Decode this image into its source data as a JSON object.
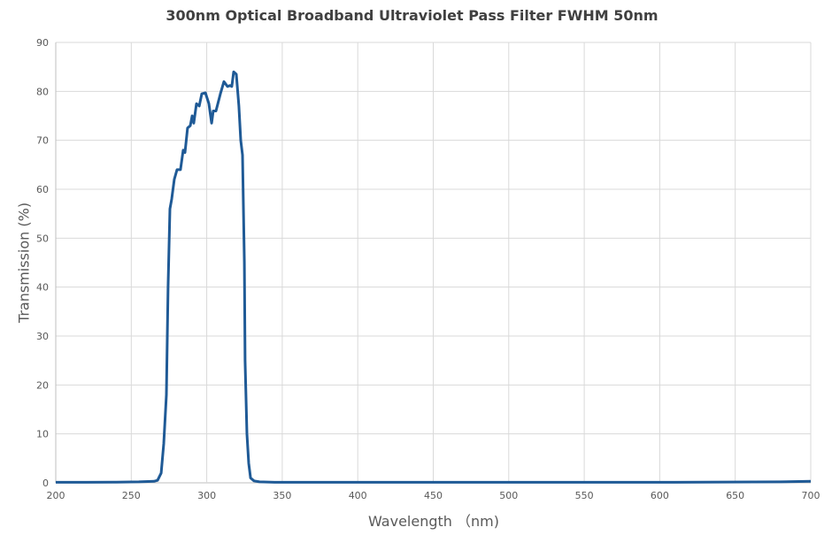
{
  "chart_data": {
    "type": "line",
    "title": "300nm Optical Broadband Ultraviolet Pass Filter FWHM 50nm",
    "xlabel": "Wavelength （nm)",
    "ylabel": "Transmission (%)",
    "xlim": [
      200,
      700
    ],
    "ylim": [
      0,
      90
    ],
    "xticks": [
      200,
      250,
      300,
      350,
      400,
      450,
      500,
      550,
      600,
      650,
      700
    ],
    "yticks": [
      0,
      10,
      20,
      30,
      40,
      50,
      60,
      70,
      80,
      90
    ],
    "grid": true,
    "line_color": "#1f5a96",
    "series": [
      {
        "x": [
          200,
          220,
          240,
          255,
          265,
          267.4,
          269.8,
          271.5,
          273.3,
          274.4,
          275.6,
          276.8,
          278.5,
          280.3,
          282.6,
          284.4,
          285.6,
          287.3,
          289.1,
          290.3,
          291.4,
          293.2,
          295,
          296.7,
          299.1,
          301.4,
          303.2,
          304.3,
          306.1,
          309,
          311.4,
          313.7,
          315.5,
          316.6,
          317.8,
          319.6,
          321.3,
          322.5,
          323.7,
          324.9,
          325.4,
          326.6,
          327.8,
          329,
          331.3,
          335,
          345,
          400,
          500,
          600,
          680,
          700
        ],
        "y": [
          0.1,
          0.1,
          0.15,
          0.2,
          0.3,
          0.5,
          2,
          8,
          18,
          40,
          56,
          58,
          62,
          64,
          64,
          68,
          67.5,
          72.5,
          73,
          75,
          73.5,
          77.5,
          77,
          79.5,
          79.7,
          77.5,
          73.5,
          76,
          76,
          79.5,
          82,
          81,
          81.2,
          81,
          84,
          83.5,
          77,
          70,
          67,
          45,
          25,
          10,
          4,
          1,
          0.4,
          0.2,
          0.1,
          0.1,
          0.1,
          0.1,
          0.2,
          0.3
        ]
      }
    ]
  }
}
